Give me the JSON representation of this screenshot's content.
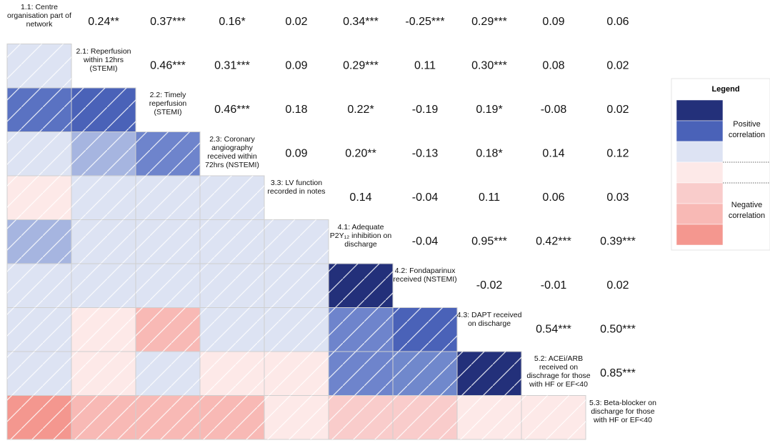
{
  "chart_data": {
    "type": "correlation-matrix",
    "variables": [
      "1.1: Centre organisation part of network",
      "2.1: Reperfusion within 12hrs (STEMI)",
      "2.2: Timely reperfusion (STEMI)",
      "2.3: Coronary angiography received within 72hrs (NSTEMI)",
      "3.3: LV function recorded in notes",
      "4.1: Adequate P2Y₁₂ inhibition on discharge",
      "4.2: Fondaparinux received (NSTEMI)",
      "4.3: DAPT received on discharge",
      "5.2: ACEi/ARB received on dischrage for those with HF or EF<40",
      "5.3: Beta-blocker on discharge for those with HF or EF<40"
    ],
    "values": [
      [
        0.24,
        0.37,
        0.16,
        0.02,
        0.34,
        -0.25,
        0.29,
        0.09,
        0.06
      ],
      [
        0.46,
        0.31,
        0.09,
        0.29,
        0.11,
        0.3,
        0.08,
        0.02
      ],
      [
        0.46,
        0.18,
        0.22,
        -0.19,
        0.19,
        -0.08,
        0.02
      ],
      [
        0.09,
        0.2,
        -0.13,
        0.18,
        0.14,
        0.12
      ],
      [
        0.14,
        -0.04,
        0.11,
        0.06,
        0.03
      ],
      [
        -0.04,
        0.95,
        0.42,
        0.39
      ],
      [
        -0.02,
        -0.01,
        0.02
      ],
      [
        0.54,
        0.5
      ],
      [
        0.85
      ]
    ],
    "value_labels": [
      [
        "0.24**",
        "0.37***",
        "0.16*",
        "0.02",
        "0.34***",
        "-0.25***",
        "0.29***",
        "0.09",
        "0.06"
      ],
      [
        "0.46***",
        "0.31***",
        "0.09",
        "0.29***",
        "0.11",
        "0.30***",
        "0.08",
        "0.02"
      ],
      [
        "0.46***",
        "0.18",
        "0.22*",
        "-0.19",
        "0.19*",
        "-0.08",
        "0.02"
      ],
      [
        "0.09",
        "0.20**",
        "-0.13",
        "0.18*",
        "0.14",
        "0.12"
      ],
      [
        "0.14",
        "-0.04",
        "0.11",
        "0.06",
        "0.03"
      ],
      [
        "-0.04",
        "0.95***",
        "0.42***",
        "0.39***"
      ],
      [
        "-0.02",
        "-0.01",
        "0.02"
      ],
      [
        "0.54***",
        "0.50***"
      ],
      [
        "0.85***"
      ]
    ],
    "cell_colors": [
      [
        "#dde3f3",
        "#5a72c2",
        "#dde3f3",
        "#fde9e8",
        "#a6b5e0",
        "#dde3f3",
        "#dde3f3",
        "#dde3f3",
        "#f4978f"
      ],
      [
        "#4a62b8",
        "#a6b5e0",
        "#dde3f3",
        "#dde3f3",
        "#dde3f3",
        "#fde9e8",
        "#fde9e8",
        "#f8b9b5"
      ],
      [
        "#6e84cc",
        "#dde3f3",
        "#dde3f3",
        "#dde3f3",
        "#f8b9b5",
        "#dde3f3",
        "#f8b9b5"
      ],
      [
        "#dde3f3",
        "#dde3f3",
        "#dde3f3",
        "#dde3f3",
        "#fde9e8",
        "#f8b9b5"
      ],
      [
        "#dde3f3",
        "#dde3f3",
        "#dde3f3",
        "#fde9e8",
        "#fde9e8"
      ],
      [
        "#23307a",
        "#6e84cc",
        "#6e84cc",
        "#f9cccb"
      ],
      [
        "#4a62b8",
        "#7088cc",
        "#f9cccb"
      ],
      [
        "#23307a",
        "#fde9e8"
      ],
      [
        "#fde9e8"
      ]
    ],
    "legend": {
      "title": "Legend",
      "positive_label": "Positive correlation",
      "negative_label": "Negative correlation",
      "colors": [
        "#23307a",
        "#4a62b8",
        "#dde3f3",
        "#fde9e8",
        "#f9cccb",
        "#f8b9b5",
        "#f4978f"
      ]
    }
  }
}
